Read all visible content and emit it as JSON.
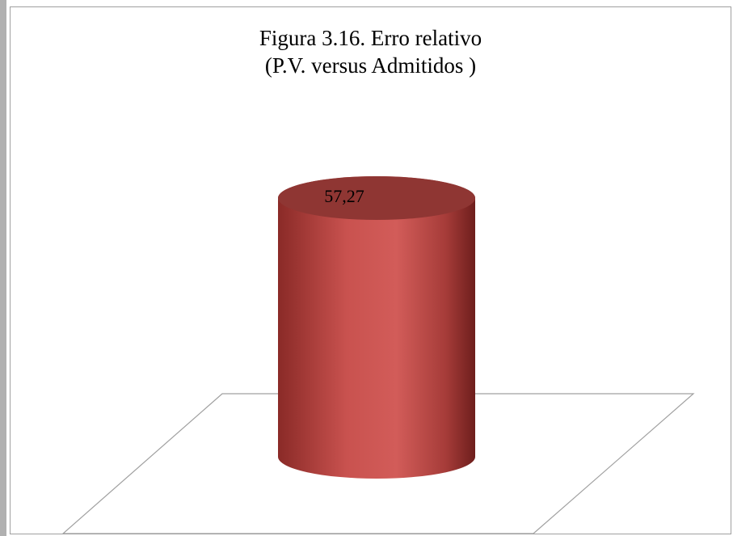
{
  "chart_data": {
    "type": "bar",
    "title": "Figura 3.16. Erro relativo\n(P.V. versus Admitidos )",
    "categories": [
      null
    ],
    "values": [
      57.27
    ],
    "value_labels": [
      "57,27"
    ],
    "color": "#c0504d"
  }
}
